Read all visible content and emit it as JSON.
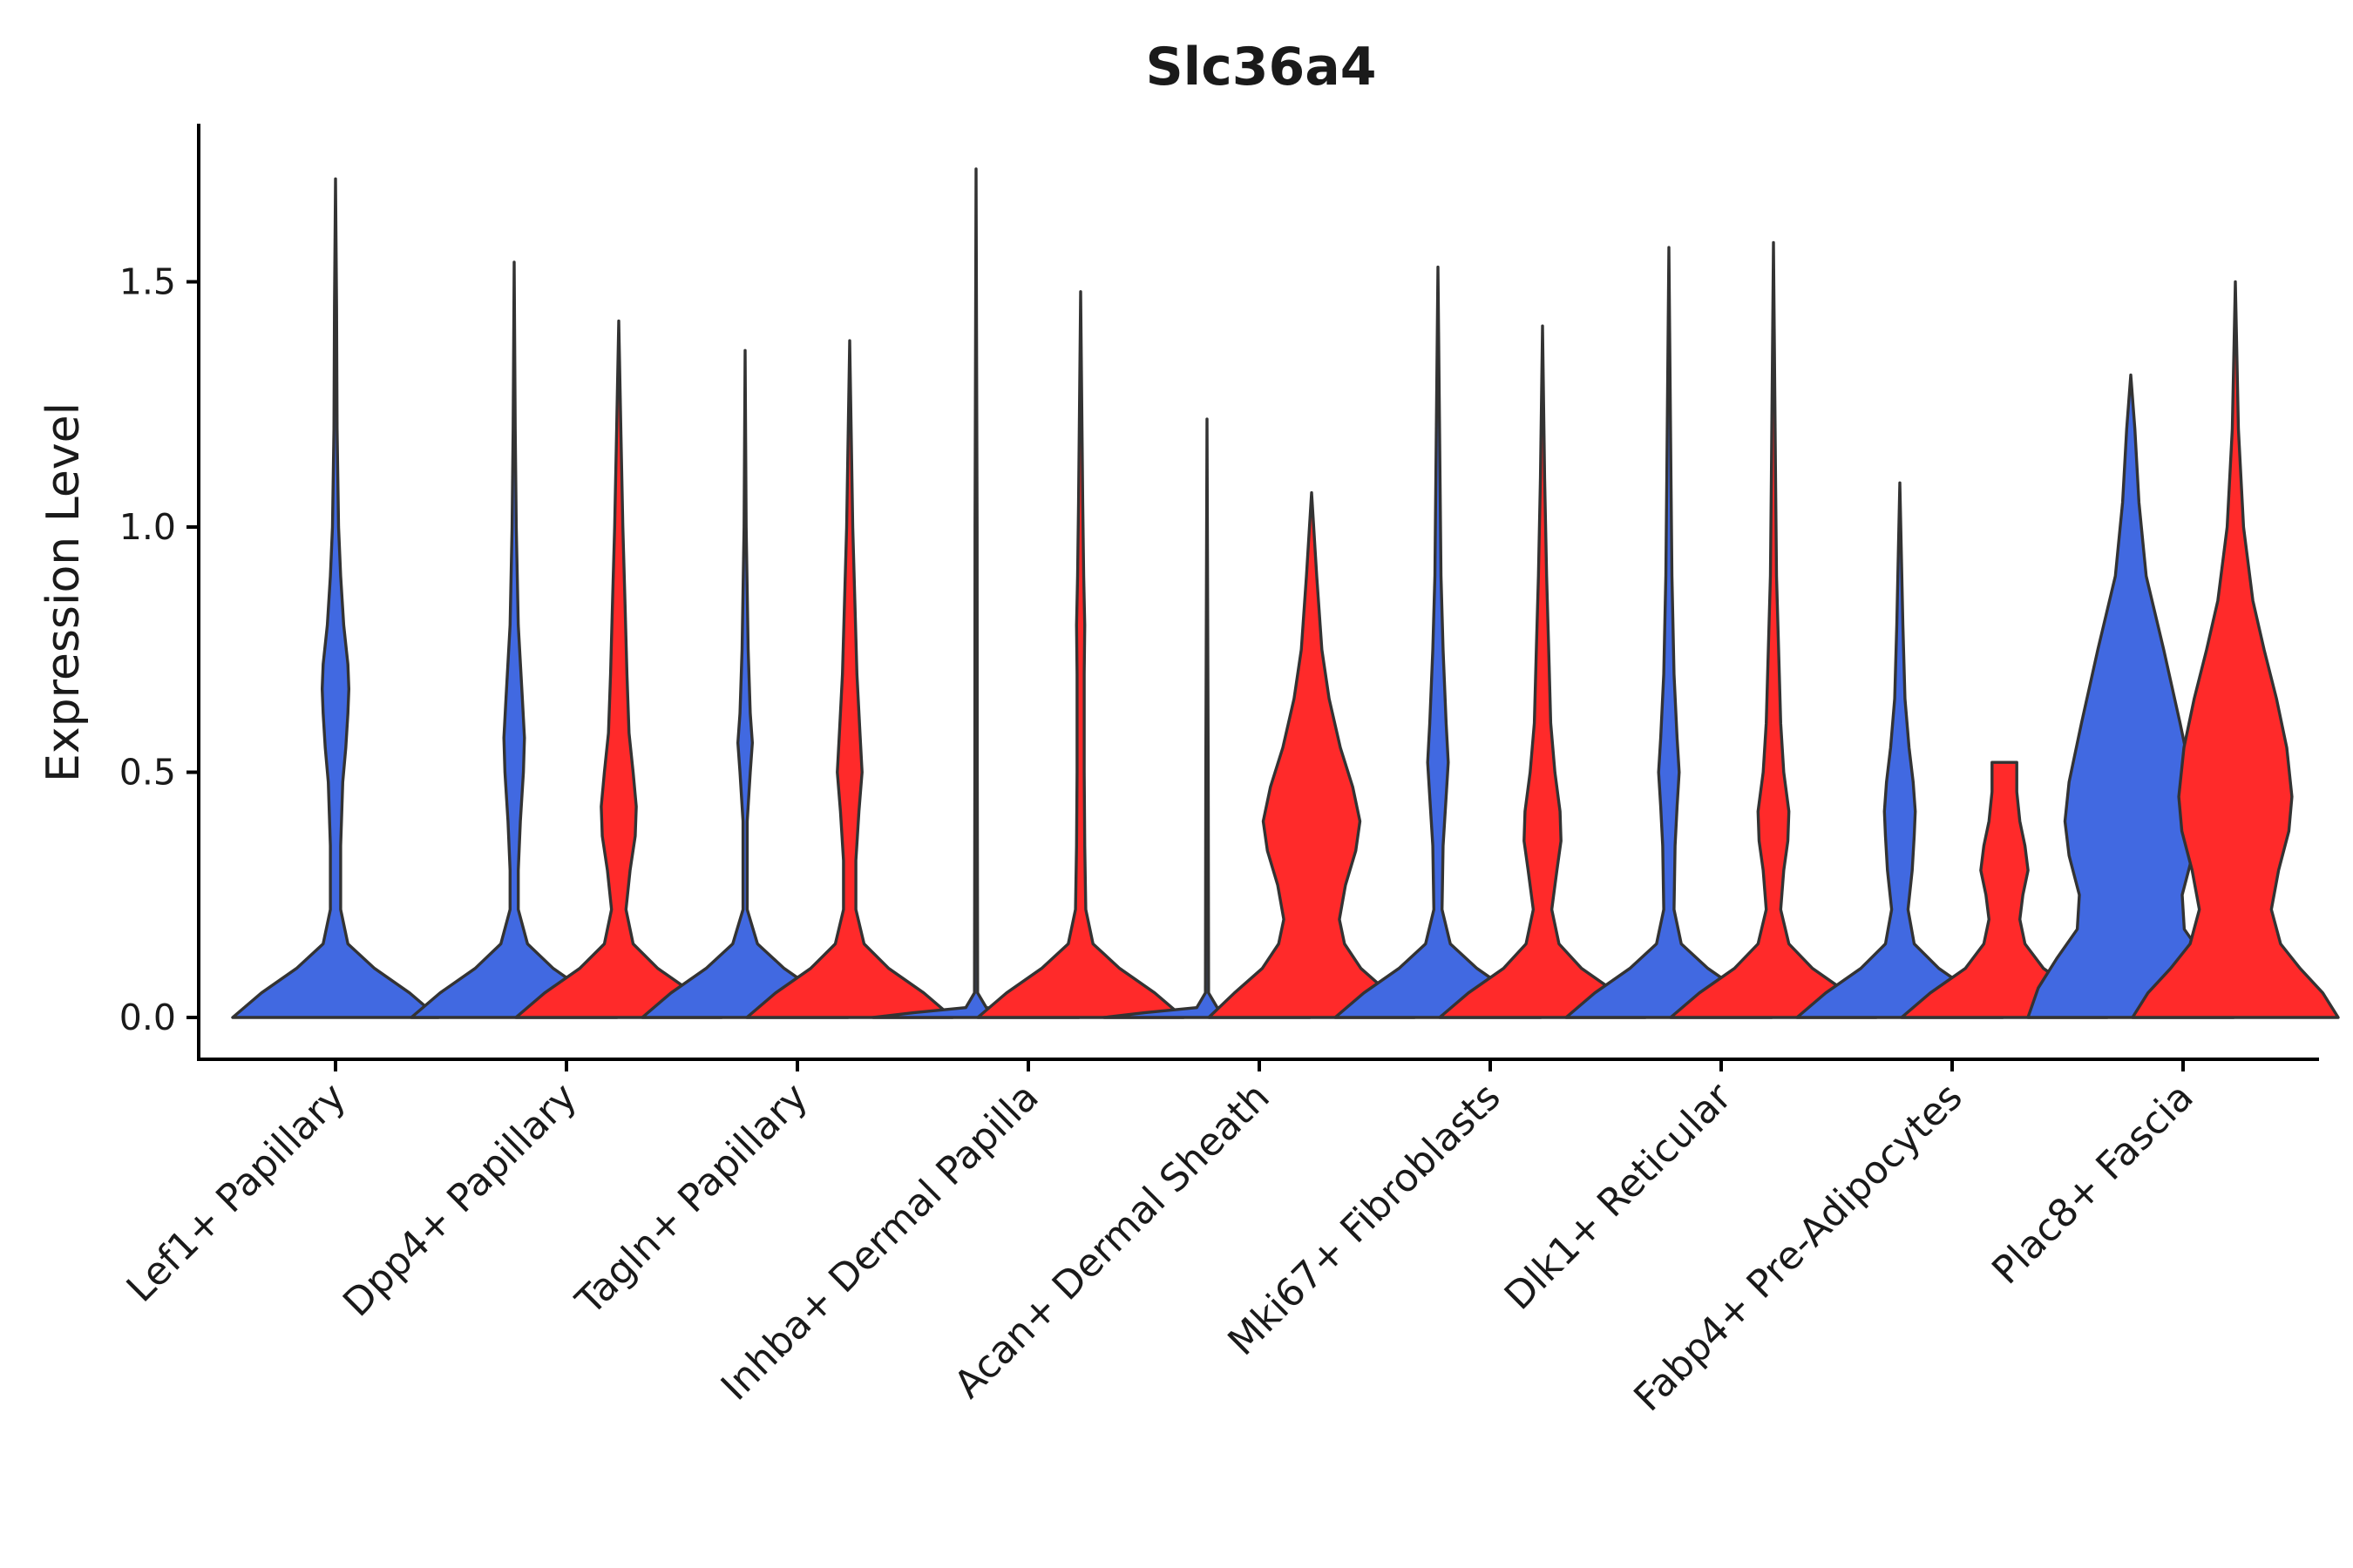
{
  "chart_data": {
    "type": "violin",
    "title": "Slc36a4",
    "xlabel": "",
    "ylabel": "Expression Level",
    "ylim": [
      -0.085,
      1.83
    ],
    "yticks": [
      0.0,
      0.5,
      1.0,
      1.5
    ],
    "ytick_labels": [
      "0.0",
      "0.5",
      "1.0",
      "1.5"
    ],
    "grid": false,
    "legend": "none",
    "categories": [
      "Lef1+ Papillary",
      "Dpp4+ Papillary",
      "Tagln+ Papillary",
      "Inhba+ Dermal Papilla",
      "Acan+ Dermal Sheath",
      "Mki67+ Fibroblasts",
      "Dlk1+ Reticular",
      "Fabp4+ Pre-Adipocytes",
      "Plac8+ Fascia"
    ],
    "series": [
      {
        "name": "blue group",
        "color": "#4169E1",
        "max_values": [
          1.71,
          1.54,
          1.36,
          1.73,
          1.22,
          1.53,
          1.57,
          1.09,
          1.31
        ],
        "profiles": [
          [
            [
              0.0,
              1.0
            ],
            [
              0.05,
              0.72
            ],
            [
              0.1,
              0.38
            ],
            [
              0.15,
              0.12
            ],
            [
              0.22,
              0.05
            ],
            [
              0.35,
              0.05
            ],
            [
              0.48,
              0.07
            ],
            [
              0.55,
              0.1
            ],
            [
              0.62,
              0.12
            ],
            [
              0.67,
              0.13
            ],
            [
              0.72,
              0.12
            ],
            [
              0.8,
              0.08
            ],
            [
              0.9,
              0.05
            ],
            [
              1.0,
              0.03
            ],
            [
              1.2,
              0.015
            ],
            [
              1.45,
              0.01
            ],
            [
              1.71,
              0.0
            ]
          ],
          [
            [
              0.0,
              1.0
            ],
            [
              0.05,
              0.72
            ],
            [
              0.1,
              0.38
            ],
            [
              0.15,
              0.13
            ],
            [
              0.22,
              0.04
            ],
            [
              0.3,
              0.04
            ],
            [
              0.4,
              0.06
            ],
            [
              0.5,
              0.09
            ],
            [
              0.57,
              0.1
            ],
            [
              0.65,
              0.08
            ],
            [
              0.8,
              0.04
            ],
            [
              1.0,
              0.02
            ],
            [
              1.2,
              0.01
            ],
            [
              1.54,
              0.0
            ]
          ],
          [
            [
              0.0,
              1.0
            ],
            [
              0.05,
              0.72
            ],
            [
              0.1,
              0.38
            ],
            [
              0.15,
              0.12
            ],
            [
              0.22,
              0.02
            ],
            [
              0.4,
              0.02
            ],
            [
              0.5,
              0.05
            ],
            [
              0.56,
              0.07
            ],
            [
              0.62,
              0.05
            ],
            [
              0.75,
              0.03
            ],
            [
              1.0,
              0.01
            ],
            [
              1.36,
              0.0
            ]
          ],
          [
            [
              0.0,
              1.0
            ],
            [
              0.01,
              0.6
            ],
            [
              0.02,
              0.1
            ],
            [
              0.05,
              0.015
            ],
            [
              0.5,
              0.012
            ],
            [
              1.0,
              0.01
            ],
            [
              1.73,
              0.0
            ]
          ],
          [
            [
              0.0,
              1.0
            ],
            [
              0.01,
              0.6
            ],
            [
              0.02,
              0.1
            ],
            [
              0.05,
              0.015
            ],
            [
              0.5,
              0.012
            ],
            [
              1.22,
              0.0
            ]
          ],
          [
            [
              0.0,
              1.0
            ],
            [
              0.05,
              0.72
            ],
            [
              0.1,
              0.38
            ],
            [
              0.15,
              0.12
            ],
            [
              0.22,
              0.04
            ],
            [
              0.35,
              0.05
            ],
            [
              0.45,
              0.08
            ],
            [
              0.52,
              0.1
            ],
            [
              0.6,
              0.08
            ],
            [
              0.75,
              0.05
            ],
            [
              0.9,
              0.03
            ],
            [
              1.1,
              0.02
            ],
            [
              1.53,
              0.0
            ]
          ],
          [
            [
              0.0,
              1.0
            ],
            [
              0.05,
              0.72
            ],
            [
              0.1,
              0.38
            ],
            [
              0.15,
              0.12
            ],
            [
              0.22,
              0.05
            ],
            [
              0.35,
              0.06
            ],
            [
              0.43,
              0.08
            ],
            [
              0.5,
              0.1
            ],
            [
              0.57,
              0.08
            ],
            [
              0.7,
              0.05
            ],
            [
              0.9,
              0.03
            ],
            [
              1.1,
              0.02
            ],
            [
              1.57,
              0.0
            ]
          ],
          [
            [
              0.0,
              1.0
            ],
            [
              0.05,
              0.72
            ],
            [
              0.1,
              0.38
            ],
            [
              0.15,
              0.14
            ],
            [
              0.22,
              0.08
            ],
            [
              0.3,
              0.12
            ],
            [
              0.37,
              0.14
            ],
            [
              0.42,
              0.15
            ],
            [
              0.48,
              0.13
            ],
            [
              0.55,
              0.09
            ],
            [
              0.65,
              0.05
            ],
            [
              0.8,
              0.03
            ],
            [
              1.09,
              0.0
            ]
          ],
          [
            [
              0.0,
              1.0
            ],
            [
              0.06,
              0.9
            ],
            [
              0.12,
              0.72
            ],
            [
              0.18,
              0.52
            ],
            [
              0.25,
              0.5
            ],
            [
              0.33,
              0.6
            ],
            [
              0.4,
              0.64
            ],
            [
              0.48,
              0.6
            ],
            [
              0.6,
              0.48
            ],
            [
              0.75,
              0.32
            ],
            [
              0.9,
              0.15
            ],
            [
              1.05,
              0.08
            ],
            [
              1.2,
              0.04
            ],
            [
              1.31,
              0.0
            ]
          ]
        ]
      },
      {
        "name": "red group",
        "color": "#FF2A2A",
        "max_values": [
          null,
          1.42,
          1.38,
          1.48,
          1.07,
          1.41,
          1.58,
          0.52,
          1.5
        ],
        "profiles": [
          null,
          [
            [
              0.0,
              1.0
            ],
            [
              0.05,
              0.72
            ],
            [
              0.1,
              0.38
            ],
            [
              0.15,
              0.14
            ],
            [
              0.22,
              0.07
            ],
            [
              0.3,
              0.11
            ],
            [
              0.37,
              0.16
            ],
            [
              0.43,
              0.17
            ],
            [
              0.5,
              0.14
            ],
            [
              0.58,
              0.1
            ],
            [
              0.7,
              0.08
            ],
            [
              0.85,
              0.06
            ],
            [
              1.0,
              0.04
            ],
            [
              1.2,
              0.02
            ],
            [
              1.42,
              0.0
            ]
          ],
          [
            [
              0.0,
              1.0
            ],
            [
              0.05,
              0.72
            ],
            [
              0.1,
              0.38
            ],
            [
              0.15,
              0.14
            ],
            [
              0.22,
              0.06
            ],
            [
              0.32,
              0.06
            ],
            [
              0.42,
              0.09
            ],
            [
              0.5,
              0.12
            ],
            [
              0.58,
              0.1
            ],
            [
              0.7,
              0.07
            ],
            [
              0.85,
              0.05
            ],
            [
              1.0,
              0.03
            ],
            [
              1.38,
              0.0
            ]
          ],
          [
            [
              0.0,
              1.0
            ],
            [
              0.05,
              0.72
            ],
            [
              0.1,
              0.38
            ],
            [
              0.15,
              0.12
            ],
            [
              0.22,
              0.05
            ],
            [
              0.35,
              0.04
            ],
            [
              0.5,
              0.035
            ],
            [
              0.7,
              0.035
            ],
            [
              0.8,
              0.04
            ],
            [
              0.9,
              0.03
            ],
            [
              1.05,
              0.02
            ],
            [
              1.48,
              0.0
            ]
          ],
          [
            [
              0.0,
              1.0
            ],
            [
              0.05,
              0.75
            ],
            [
              0.1,
              0.48
            ],
            [
              0.15,
              0.32
            ],
            [
              0.2,
              0.27
            ],
            [
              0.27,
              0.33
            ],
            [
              0.34,
              0.43
            ],
            [
              0.4,
              0.47
            ],
            [
              0.47,
              0.4
            ],
            [
              0.55,
              0.28
            ],
            [
              0.65,
              0.17
            ],
            [
              0.75,
              0.1
            ],
            [
              0.9,
              0.05
            ],
            [
              1.07,
              0.0
            ]
          ],
          [
            [
              0.0,
              1.0
            ],
            [
              0.05,
              0.72
            ],
            [
              0.1,
              0.38
            ],
            [
              0.15,
              0.16
            ],
            [
              0.22,
              0.09
            ],
            [
              0.3,
              0.14
            ],
            [
              0.36,
              0.18
            ],
            [
              0.42,
              0.17
            ],
            [
              0.5,
              0.12
            ],
            [
              0.6,
              0.08
            ],
            [
              0.75,
              0.06
            ],
            [
              0.9,
              0.04
            ],
            [
              1.1,
              0.02
            ],
            [
              1.41,
              0.0
            ]
          ],
          [
            [
              0.0,
              1.0
            ],
            [
              0.05,
              0.72
            ],
            [
              0.1,
              0.38
            ],
            [
              0.15,
              0.15
            ],
            [
              0.22,
              0.07
            ],
            [
              0.3,
              0.1
            ],
            [
              0.36,
              0.14
            ],
            [
              0.42,
              0.15
            ],
            [
              0.5,
              0.1
            ],
            [
              0.6,
              0.07
            ],
            [
              0.75,
              0.05
            ],
            [
              0.9,
              0.03
            ],
            [
              1.1,
              0.02
            ],
            [
              1.58,
              0.0
            ]
          ],
          [
            [
              0.0,
              1.0
            ],
            [
              0.05,
              0.72
            ],
            [
              0.1,
              0.38
            ],
            [
              0.15,
              0.2
            ],
            [
              0.2,
              0.15
            ],
            [
              0.25,
              0.18
            ],
            [
              0.3,
              0.23
            ],
            [
              0.35,
              0.2
            ],
            [
              0.4,
              0.15
            ],
            [
              0.46,
              0.12
            ],
            [
              0.52,
              0.12
            ],
            [
              0.52,
              0.0
            ]
          ],
          [
            [
              0.0,
              1.0
            ],
            [
              0.05,
              0.85
            ],
            [
              0.1,
              0.63
            ],
            [
              0.15,
              0.44
            ],
            [
              0.22,
              0.35
            ],
            [
              0.3,
              0.42
            ],
            [
              0.38,
              0.52
            ],
            [
              0.45,
              0.55
            ],
            [
              0.55,
              0.5
            ],
            [
              0.65,
              0.4
            ],
            [
              0.75,
              0.28
            ],
            [
              0.85,
              0.17
            ],
            [
              1.0,
              0.08
            ],
            [
              1.2,
              0.03
            ],
            [
              1.5,
              0.0
            ]
          ]
        ]
      }
    ]
  }
}
